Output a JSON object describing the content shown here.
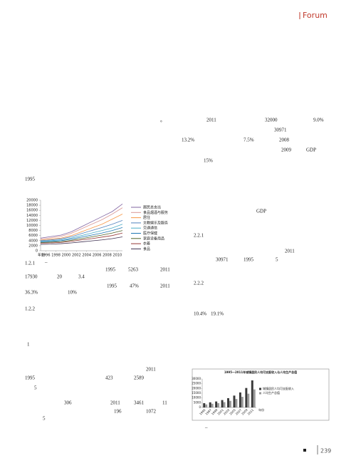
{
  "header": {
    "title": "Forum"
  },
  "body": [
    "。",
    "2011",
    "32000",
    "9.0%",
    "30971",
    "13.2%",
    "7.5%",
    "2008",
    "2009",
    "GDP",
    "15%",
    "1995",
    "GDP",
    "2.2.1",
    "2011",
    "30971",
    "1995",
    "5",
    "2.2.2",
    "10.4%",
    "19.1%",
    "–",
    "–",
    "1.2.1",
    "1995",
    "5263",
    "2011",
    "17930",
    "20",
    "3.4",
    "1995",
    "47%",
    "2011",
    "36.3%",
    "10%",
    "1.2.2",
    "1",
    "2011",
    "1995",
    "423",
    "2589",
    "5",
    "306",
    "2011",
    "3461",
    "11",
    "196",
    "1072",
    "5"
  ],
  "chart_data": [
    {
      "type": "line",
      "xlabel": "年份",
      "x": [
        1995,
        1997,
        1999,
        2001,
        2003,
        2005,
        2007,
        2009,
        2011
      ],
      "xlim": [
        1995,
        2011
      ],
      "xticks": [
        1996,
        1998,
        2000,
        2002,
        2004,
        2006,
        2008,
        2010
      ],
      "ylim": [
        0,
        20000
      ],
      "yticks": [
        0,
        2000,
        4000,
        6000,
        8000,
        10000,
        12000,
        14000,
        16000,
        18000,
        20000
      ],
      "series": [
        {
          "name": "居民总支出",
          "color": "#8064a2",
          "values": [
            5000,
            5600,
            6200,
            7500,
            9500,
            11500,
            13500,
            15500,
            18500
          ]
        },
        {
          "name": "食品烟酒与服务",
          "color": "#d99694",
          "values": [
            4600,
            5100,
            5700,
            6900,
            8700,
            10500,
            12300,
            14500,
            17000
          ]
        },
        {
          "name": "居住",
          "color": "#f79646",
          "values": [
            4200,
            4600,
            5000,
            6000,
            7500,
            9000,
            10500,
            12500,
            14500
          ]
        },
        {
          "name": "文教娱乐及服务",
          "color": "#4f81bd",
          "values": [
            4000,
            4300,
            4700,
            5500,
            6800,
            8000,
            9200,
            10500,
            12000
          ]
        },
        {
          "name": "交通通信",
          "color": "#4bacc6",
          "values": [
            3700,
            4000,
            4300,
            5000,
            6000,
            7000,
            8000,
            9000,
            10500
          ]
        },
        {
          "name": "医疗保健",
          "color": "#1f77b4",
          "values": [
            3500,
            3700,
            4000,
            4600,
            5400,
            6200,
            7000,
            8000,
            9200
          ]
        },
        {
          "name": "家庭设备用品",
          "color": "#4f6228",
          "values": [
            3200,
            3400,
            3600,
            4100,
            4800,
            5500,
            6200,
            7000,
            8000
          ]
        },
        {
          "name": "衣着",
          "color": "#953735",
          "values": [
            3000,
            3100,
            3300,
            3700,
            4300,
            4800,
            5400,
            6000,
            7000
          ]
        },
        {
          "name": "食品",
          "color": "#3f3151",
          "values": [
            2500,
            2600,
            2800,
            3100,
            3500,
            3900,
            4300,
            4800,
            5500
          ]
        }
      ]
    },
    {
      "type": "bar",
      "title": "1995—2011年城镇居民人均可支配收入与人均生产总值",
      "xlabel": "年份",
      "categories": [
        "1995",
        "1997",
        "1999",
        "2001",
        "2003",
        "2005",
        "2007",
        "2009",
        "2011"
      ],
      "ylim": [
        0,
        30000
      ],
      "yticks": [
        0,
        5000,
        10000,
        15000,
        20000,
        25000,
        30000
      ],
      "series": [
        {
          "name": "城镇居民人均可支配收入",
          "color": "#3a3a3a",
          "values": [
            4500,
            5400,
            6300,
            7800,
            9800,
            12500,
            15800,
            20500,
            28500
          ]
        },
        {
          "name": "人均生产总值",
          "color": "#9a9a9a",
          "values": [
            3200,
            3900,
            4600,
            5600,
            7000,
            8900,
            11200,
            14500,
            19000
          ]
        }
      ]
    }
  ],
  "footer": {
    "page": "239"
  }
}
